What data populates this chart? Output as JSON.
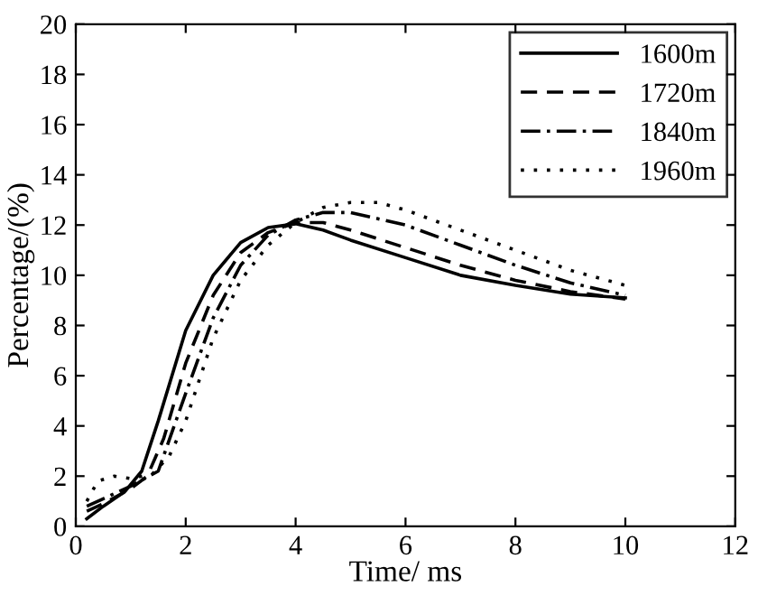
{
  "chart_data": {
    "type": "line",
    "xlabel": "Time/ ms",
    "ylabel": "Percentage/(%)",
    "xlim": [
      0,
      12
    ],
    "ylim": [
      0,
      20
    ],
    "xticks": [
      0,
      2,
      4,
      6,
      8,
      10,
      12
    ],
    "yticks": [
      0,
      2,
      4,
      6,
      8,
      10,
      12,
      14,
      16,
      18,
      20
    ],
    "grid": false,
    "legend": "top right",
    "marker": "none",
    "series": [
      {
        "name": "1600m",
        "color": "#000000",
        "line_style": "solid",
        "x": [
          0.2,
          0.5,
          0.9,
          1.2,
          1.5,
          2,
          2.5,
          3,
          3.5,
          4,
          4.5,
          5,
          6,
          7,
          8,
          9,
          10
        ],
        "values": [
          0.3,
          0.8,
          1.4,
          2.2,
          4.2,
          7.8,
          10.0,
          11.3,
          11.9,
          12.05,
          11.8,
          11.4,
          10.7,
          10.0,
          9.6,
          9.25,
          9.1
        ]
      },
      {
        "name": "1720m",
        "color": "#000000",
        "line_style": "dashed",
        "x": [
          0.2,
          0.5,
          1,
          1.3,
          1.6,
          2,
          2.5,
          3,
          3.5,
          4,
          4.5,
          5,
          6,
          7,
          8,
          9,
          10
        ],
        "values": [
          0.6,
          0.9,
          1.5,
          2.0,
          3.5,
          6.5,
          9.2,
          10.9,
          11.7,
          12.1,
          12.1,
          11.8,
          11.1,
          10.4,
          9.8,
          9.35,
          9.05
        ]
      },
      {
        "name": "1840m",
        "color": "#000000",
        "line_style": "dashdot",
        "x": [
          0.2,
          0.5,
          1,
          1.5,
          2,
          2.5,
          3,
          3.5,
          4,
          4.5,
          5,
          6,
          7,
          8,
          9,
          10
        ],
        "values": [
          0.8,
          1.1,
          1.6,
          2.2,
          5.3,
          8.3,
          10.4,
          11.6,
          12.2,
          12.5,
          12.5,
          12.0,
          11.2,
          10.4,
          9.7,
          9.2
        ]
      },
      {
        "name": "1960m",
        "color": "#000000",
        "line_style": "dotted",
        "x": [
          0.2,
          0.4,
          0.7,
          1,
          1.4,
          1.7,
          2,
          2.5,
          3,
          3.5,
          4,
          4.5,
          5,
          5.5,
          6,
          7,
          8,
          9,
          10
        ],
        "values": [
          1.0,
          1.8,
          2.0,
          1.9,
          2.1,
          2.8,
          4.2,
          7.5,
          9.8,
          11.2,
          12.1,
          12.7,
          12.9,
          12.9,
          12.6,
          11.8,
          11.0,
          10.2,
          9.6
        ]
      }
    ]
  }
}
